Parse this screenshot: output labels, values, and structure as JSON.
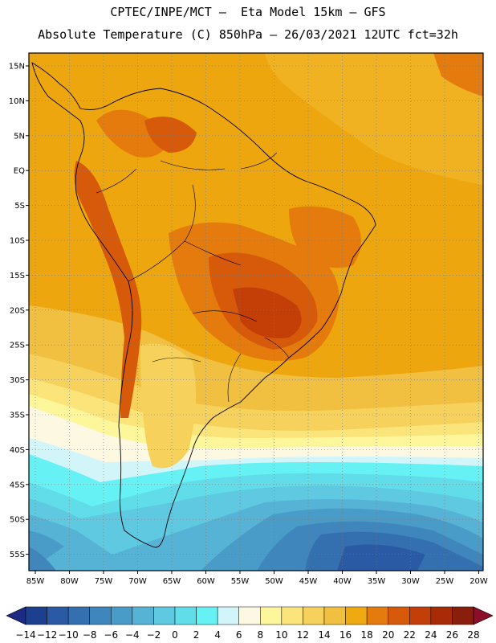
{
  "header": {
    "line1": "CPTEC/INPE/MCT –  Eta Model 15km – GFS",
    "line2": "Absolute Temperature (C) 850hPa – 26/03/2021 12UTC fct=32h"
  },
  "map": {
    "lat_labels": [
      "15N",
      "10N",
      "5N",
      "EQ",
      "5S",
      "10S",
      "15S",
      "20S",
      "25S",
      "30S",
      "35S",
      "40S",
      "45S",
      "50S",
      "55S"
    ],
    "lon_labels": [
      "85W",
      "80W",
      "75W",
      "70W",
      "65W",
      "60W",
      "55W",
      "50W",
      "45W",
      "40W",
      "35W",
      "30W",
      "25W",
      "20W"
    ]
  },
  "colorbar": {
    "labels": [
      "-14",
      "-12",
      "-10",
      "-8",
      "-6",
      "-4",
      "-2",
      "0",
      "2",
      "4",
      "6",
      "8",
      "10",
      "12",
      "14",
      "16",
      "18",
      "20",
      "22",
      "24",
      "26",
      "28"
    ],
    "colors": [
      "#1c3f8e",
      "#2a5aa3",
      "#3470b0",
      "#3f86bd",
      "#4a9cc8",
      "#57b3d5",
      "#5ec9e0",
      "#60dde9",
      "#66f2f4",
      "#d2f5fa",
      "#fdf8e2",
      "#fef69a",
      "#fbe57a",
      "#f6d25c",
      "#f1c040",
      "#eeaa10",
      "#e47b0c",
      "#d65a0a",
      "#c43e08",
      "#a82a06",
      "#8a1e0c"
    ],
    "under_color": "#1c2a86",
    "over_color": "#8c0d2a"
  }
}
